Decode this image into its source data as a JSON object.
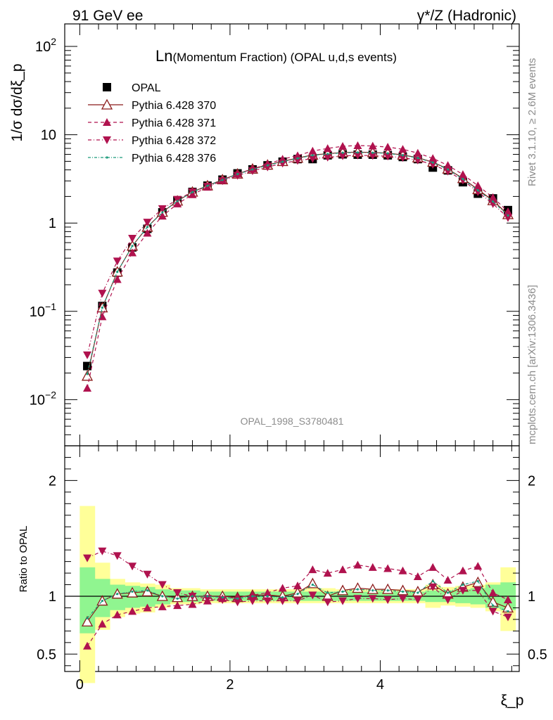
{
  "header": {
    "left": "91 GeV ee",
    "right": "γ*/Z (Hadronic)"
  },
  "side_labels": {
    "rivet": "Rivet 3.1.10, ≥ 2.6M events",
    "mcplots": "mcplots.cern.ch [arXiv:1306.3436]"
  },
  "colors": {
    "opal": "#000000",
    "p370": "#8b1a1a",
    "p371": "#b0124e",
    "p372": "#b0124e",
    "p376": "#1a9a7a",
    "band_inner": "#90f590",
    "band_outer": "#ffff99"
  },
  "chart_data": [
    {
      "type": "scatter",
      "title_main": "Ln",
      "title_rest": "(Momentum Fraction) (OPAL u,d,s events)",
      "ylabel": "1/σ dσ/dξ_p",
      "watermark": "OPAL_1998_S3780481",
      "yscale": "log",
      "ylim": [
        0.003,
        180
      ],
      "xlim": [
        -0.2,
        5.85
      ],
      "ytick_labels": [
        "10^-2",
        "10^-1",
        "1",
        "10",
        "10^2"
      ],
      "x": [
        0.1,
        0.3,
        0.5,
        0.7,
        0.9,
        1.1,
        1.3,
        1.5,
        1.7,
        1.9,
        2.1,
        2.3,
        2.5,
        2.7,
        2.9,
        3.1,
        3.3,
        3.5,
        3.7,
        3.9,
        4.1,
        4.3,
        4.5,
        4.7,
        4.9,
        5.1,
        5.3,
        5.5,
        5.7
      ],
      "legend": [
        "OPAL",
        "Pythia 6.428 370",
        "Pythia 6.428 371",
        "Pythia 6.428 372",
        "Pythia 6.428 376"
      ],
      "series": [
        {
          "name": "OPAL",
          "values": [
            0.024,
            0.115,
            0.275,
            0.53,
            0.86,
            1.32,
            1.8,
            2.25,
            2.65,
            3.1,
            3.65,
            4.05,
            4.5,
            4.95,
            5.3,
            5.3,
            5.85,
            6.0,
            5.95,
            5.95,
            5.85,
            5.6,
            5.3,
            4.25,
            3.95,
            2.9,
            2.15,
            1.9,
            1.4
          ]
        },
        {
          "name": "Pythia 6.428 370",
          "values": [
            0.0185,
            0.11,
            0.28,
            0.55,
            0.9,
            1.33,
            1.78,
            2.25,
            2.65,
            3.1,
            3.6,
            4.1,
            4.55,
            5.0,
            5.45,
            5.9,
            6.1,
            6.3,
            6.35,
            6.3,
            6.2,
            5.9,
            5.5,
            4.9,
            4.1,
            3.2,
            2.4,
            1.8,
            1.25
          ]
        },
        {
          "name": "Pythia 6.428 371",
          "values": [
            0.0135,
            0.087,
            0.23,
            0.46,
            0.77,
            1.2,
            1.65,
            2.1,
            2.55,
            3.05,
            3.6,
            4.1,
            4.65,
            5.3,
            5.8,
            6.55,
            7.0,
            7.4,
            7.55,
            7.45,
            7.25,
            6.85,
            6.2,
            5.4,
            4.5,
            3.55,
            2.65,
            1.95,
            1.35
          ]
        },
        {
          "name": "Pythia 6.428 372",
          "values": [
            0.032,
            0.16,
            0.37,
            0.67,
            1.02,
            1.45,
            1.85,
            2.25,
            2.6,
            3.0,
            3.45,
            3.9,
            4.3,
            4.75,
            5.1,
            5.35,
            5.55,
            5.75,
            5.85,
            5.8,
            5.7,
            5.5,
            5.15,
            4.6,
            3.85,
            3.05,
            2.25,
            1.65,
            1.15
          ]
        },
        {
          "name": "Pythia 6.428 376",
          "values": [
            0.0195,
            0.11,
            0.28,
            0.55,
            0.9,
            1.32,
            1.77,
            2.24,
            2.64,
            3.08,
            3.58,
            4.05,
            4.5,
            4.95,
            5.4,
            5.85,
            6.05,
            6.25,
            6.3,
            6.25,
            6.15,
            5.85,
            5.45,
            4.85,
            4.05,
            3.15,
            2.35,
            1.75,
            1.22
          ]
        }
      ]
    },
    {
      "type": "line",
      "ylabel": "Ratio to OPAL",
      "xlabel": "ξ_p",
      "ylim": [
        0.35,
        2.3
      ],
      "xlim": [
        -0.2,
        5.85
      ],
      "yticks": [
        0.5,
        1,
        2
      ],
      "ytick_labels": [
        "0.5",
        "1",
        "2"
      ],
      "xticks": [
        0,
        2,
        4
      ],
      "xtick_labels": [
        "0",
        "2",
        "4"
      ],
      "x": [
        0.1,
        0.3,
        0.5,
        0.7,
        0.9,
        1.1,
        1.3,
        1.5,
        1.7,
        1.9,
        2.1,
        2.3,
        2.5,
        2.7,
        2.9,
        3.1,
        3.3,
        3.5,
        3.7,
        3.9,
        4.1,
        4.3,
        4.5,
        4.7,
        4.9,
        5.1,
        5.3,
        5.5,
        5.7
      ],
      "band_inner": [
        [
          0.68,
          1.25
        ],
        [
          0.82,
          1.15
        ],
        [
          0.88,
          1.1
        ],
        [
          0.9,
          1.09
        ],
        [
          0.91,
          1.08
        ],
        [
          0.93,
          1.06
        ],
        [
          0.95,
          1.05
        ],
        [
          0.95,
          1.05
        ],
        [
          0.96,
          1.04
        ],
        [
          0.96,
          1.04
        ],
        [
          0.96,
          1.04
        ],
        [
          0.96,
          1.04
        ],
        [
          0.96,
          1.04
        ],
        [
          0.96,
          1.04
        ],
        [
          0.96,
          1.04
        ],
        [
          0.96,
          1.04
        ],
        [
          0.96,
          1.04
        ],
        [
          0.96,
          1.04
        ],
        [
          0.96,
          1.04
        ],
        [
          0.96,
          1.04
        ],
        [
          0.96,
          1.04
        ],
        [
          0.96,
          1.04
        ],
        [
          0.96,
          1.04
        ],
        [
          0.95,
          1.05
        ],
        [
          0.95,
          1.05
        ],
        [
          0.94,
          1.06
        ],
        [
          0.93,
          1.07
        ],
        [
          0.9,
          1.1
        ],
        [
          0.88,
          1.12
        ]
      ],
      "band_outer": [
        [
          0.25,
          1.78
        ],
        [
          0.71,
          1.29
        ],
        [
          0.82,
          1.15
        ],
        [
          0.85,
          1.12
        ],
        [
          0.86,
          1.11
        ],
        [
          0.9,
          1.1
        ],
        [
          0.93,
          1.07
        ],
        [
          0.93,
          1.07
        ],
        [
          0.94,
          1.06
        ],
        [
          0.94,
          1.06
        ],
        [
          0.94,
          1.06
        ],
        [
          0.94,
          1.06
        ],
        [
          0.94,
          1.06
        ],
        [
          0.94,
          1.06
        ],
        [
          0.94,
          1.06
        ],
        [
          0.94,
          1.07
        ],
        [
          0.94,
          1.07
        ],
        [
          0.94,
          1.06
        ],
        [
          0.94,
          1.06
        ],
        [
          0.94,
          1.06
        ],
        [
          0.94,
          1.06
        ],
        [
          0.94,
          1.06
        ],
        [
          0.94,
          1.06
        ],
        [
          0.9,
          1.1
        ],
        [
          0.92,
          1.08
        ],
        [
          0.91,
          1.09
        ],
        [
          0.9,
          1.1
        ],
        [
          0.87,
          1.12
        ],
        [
          0.7,
          1.25
        ]
      ],
      "series": [
        {
          "name": "Pythia 6.428 370",
          "values": [
            0.78,
            0.96,
            1.02,
            1.03,
            1.04,
            1.0,
            0.99,
            1.0,
            1.0,
            1.0,
            0.99,
            1.01,
            1.01,
            1.0,
            1.03,
            1.11,
            1.0,
            1.05,
            1.07,
            1.06,
            1.06,
            1.05,
            1.04,
            1.1,
            1.02,
            1.08,
            1.12,
            0.95,
            0.9
          ]
        },
        {
          "name": "Pythia 6.428 371",
          "values": [
            0.57,
            0.76,
            0.84,
            0.87,
            0.9,
            0.91,
            0.92,
            0.93,
            0.96,
            0.98,
            0.99,
            1.01,
            1.03,
            1.07,
            1.09,
            1.23,
            1.2,
            1.23,
            1.27,
            1.25,
            1.24,
            1.22,
            1.17,
            1.25,
            1.14,
            1.22,
            1.26,
            1.03,
            0.97
          ]
        },
        {
          "name": "Pythia 6.428 372",
          "values": [
            1.33,
            1.39,
            1.35,
            1.26,
            1.19,
            1.1,
            1.03,
            1.0,
            0.98,
            0.97,
            0.95,
            0.96,
            0.96,
            0.96,
            0.96,
            1.01,
            0.95,
            0.96,
            0.98,
            0.98,
            0.97,
            0.98,
            0.97,
            1.08,
            0.97,
            1.05,
            1.05,
            0.87,
            0.82
          ]
        },
        {
          "name": "Pythia 6.428 376",
          "values": [
            0.81,
            0.96,
            1.02,
            1.04,
            1.05,
            1.0,
            0.98,
            1.0,
            1.0,
            0.99,
            0.98,
            1.0,
            1.0,
            0.99,
            1.02,
            1.1,
            1.03,
            1.04,
            1.06,
            1.05,
            1.05,
            1.04,
            1.03,
            1.13,
            1.03,
            1.1,
            1.13,
            0.92,
            0.87
          ]
        }
      ]
    }
  ]
}
